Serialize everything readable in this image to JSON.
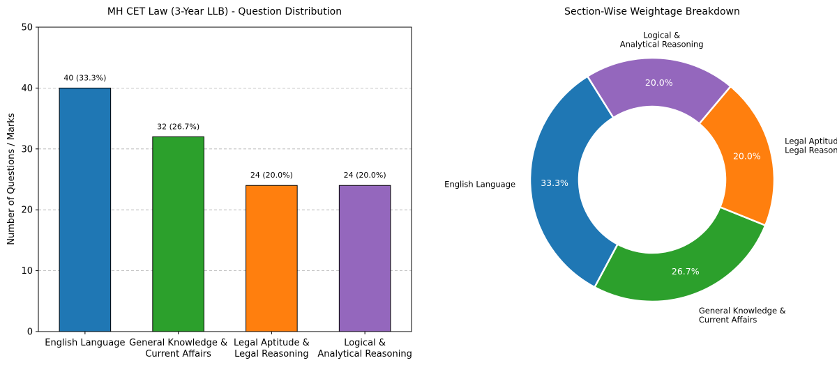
{
  "chart_data": [
    {
      "type": "bar",
      "title": "MH CET Law (3-Year LLB) - Question Distribution",
      "xlabel": "",
      "ylabel": "Number of Questions / Marks",
      "ylim": [
        0,
        50
      ],
      "yticks": [
        "0",
        "10",
        "20",
        "30",
        "40",
        "50"
      ],
      "grid": "y-dashed",
      "categories": [
        [
          "English Language"
        ],
        [
          "General Knowledge &",
          "Current Affairs"
        ],
        [
          "Legal Aptitude &",
          "Legal Reasoning"
        ],
        [
          "Logical &",
          "Analytical Reasoning"
        ]
      ],
      "values": [
        40,
        32,
        24,
        24
      ],
      "data_labels": [
        "40 (33.3%)",
        "32 (26.7%)",
        "24 (20.0%)",
        "24 (20.0%)"
      ],
      "colors": [
        "#1f77b4",
        "#2ca02c",
        "#ff7f0e",
        "#9467bd"
      ]
    },
    {
      "type": "pie",
      "style": "donut",
      "title": "Section-Wise Weightage Breakdown",
      "slices": [
        {
          "label": [
            "English Language"
          ],
          "value": 33.3,
          "pct": "33.3%",
          "color": "#1f77b4"
        },
        {
          "label": [
            "General Knowledge &",
            "Current Affairs"
          ],
          "value": 26.7,
          "pct": "26.7%",
          "color": "#2ca02c"
        },
        {
          "label": [
            "Legal Aptitude &",
            "Legal Reasoning"
          ],
          "value": 20.0,
          "pct": "20.0%",
          "color": "#ff7f0e"
        },
        {
          "label": [
            "Logical &",
            "Analytical Reasoning"
          ],
          "value": 20.0,
          "pct": "20.0%",
          "color": "#9467bd"
        }
      ]
    }
  ]
}
